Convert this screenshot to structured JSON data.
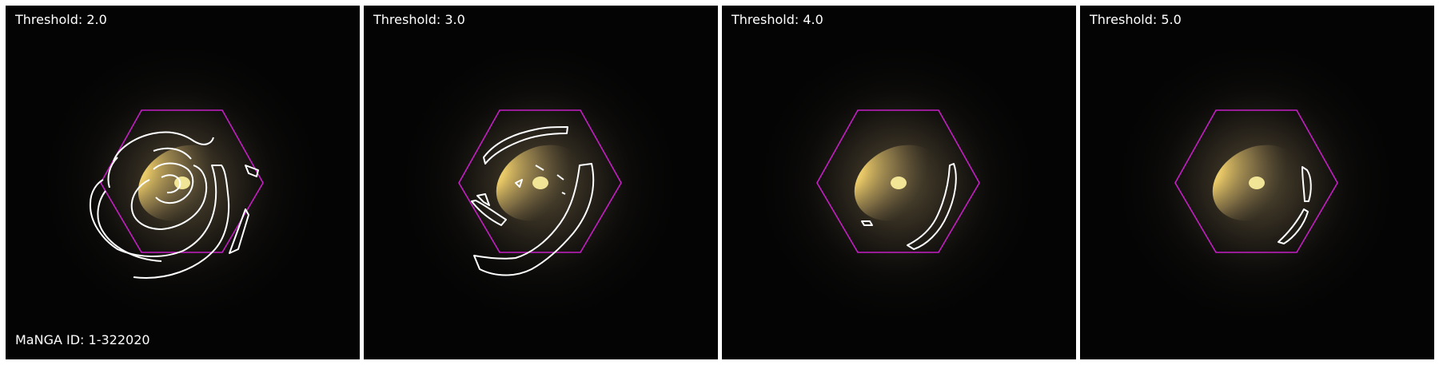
{
  "figure": {
    "manga_id_label": "MaNGA ID: 1-322020",
    "colors": {
      "background": "#040404",
      "contour": "#ffffff",
      "ifu_hexagon": "#c41ec4",
      "galaxy_core": "#fff3a0",
      "galaxy_halo": "#8a7a52"
    },
    "panels": [
      {
        "threshold_label": "Threshold: 2.0"
      },
      {
        "threshold_label": "Threshold: 3.0"
      },
      {
        "threshold_label": "Threshold: 4.0"
      },
      {
        "threshold_label": "Threshold: 5.0"
      }
    ]
  }
}
